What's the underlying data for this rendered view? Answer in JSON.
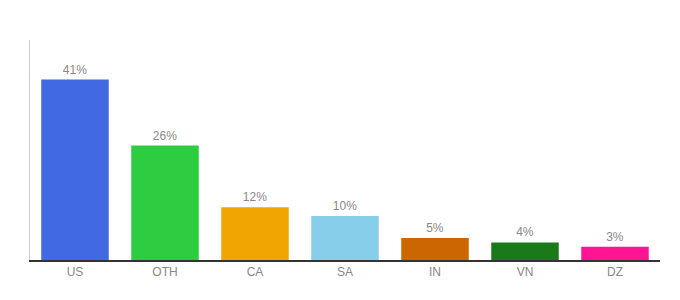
{
  "chart_data": {
    "type": "bar",
    "categories": [
      "US",
      "OTH",
      "CA",
      "SA",
      "IN",
      "VN",
      "DZ"
    ],
    "values": [
      41,
      26,
      12,
      10,
      5,
      4,
      3
    ],
    "value_labels": [
      "41%",
      "26%",
      "12%",
      "10%",
      "5%",
      "4%",
      "3%"
    ],
    "colors": [
      "#4169e1",
      "#2ecc40",
      "#f0a500",
      "#87ceeb",
      "#cc6600",
      "#1a7a1a",
      "#ff1493"
    ],
    "ylim": [
      0,
      50
    ],
    "data_labels": true,
    "tick_labels": "x",
    "grid": false
  }
}
